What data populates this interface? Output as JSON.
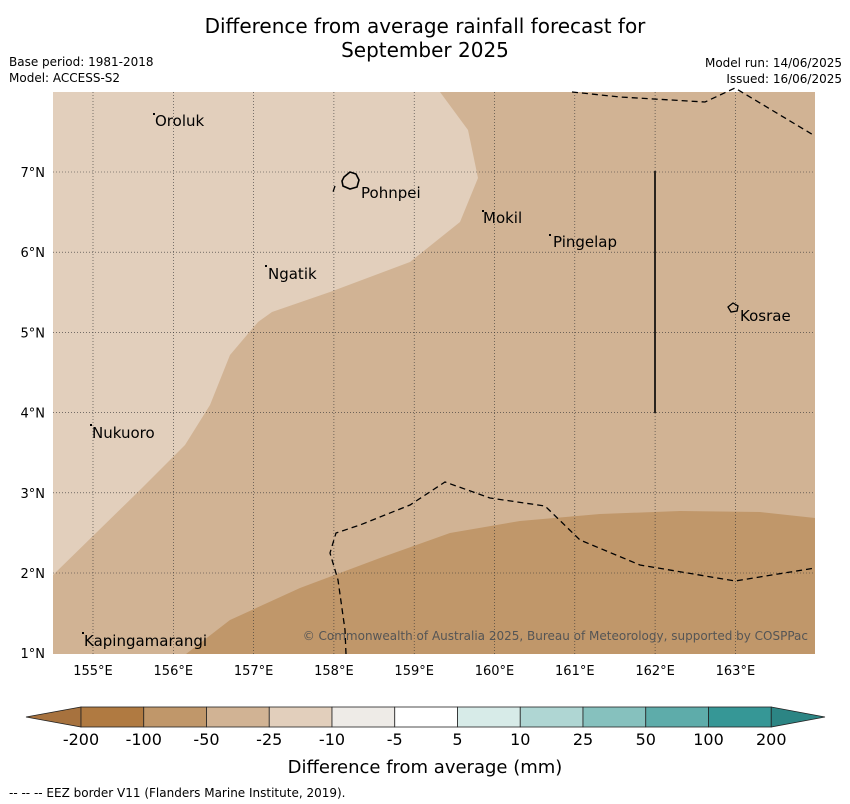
{
  "title": {
    "line1": "Difference from average rainfall forecast for",
    "line2": "September 2025"
  },
  "meta": {
    "base_period": "Base period: 1981-2018",
    "model": "Model: ACCESS-S2",
    "model_run": "Model run: 14/06/2025",
    "issued": "Issued: 16/06/2025"
  },
  "map": {
    "lon_ticks": [
      "155°E",
      "156°E",
      "157°E",
      "158°E",
      "159°E",
      "160°E",
      "161°E",
      "162°E",
      "163°E"
    ],
    "lat_ticks": [
      "7°N",
      "6°N",
      "5°N",
      "4°N",
      "3°N",
      "2°N",
      "1°N"
    ],
    "places": [
      {
        "name": "Oroluk"
      },
      {
        "name": "Pohnpei"
      },
      {
        "name": "Mokil"
      },
      {
        "name": "Pingelap"
      },
      {
        "name": "Ngatik"
      },
      {
        "name": "Kosrae"
      },
      {
        "name": "Nukuoro"
      },
      {
        "name": "Kapingamarangi"
      }
    ],
    "copyright": "© Commonwealth of Australia 2025, Bureau of Meteorology, supported by COSPPac"
  },
  "colorbar": {
    "ticks": [
      "-200",
      "-100",
      "-50",
      "-25",
      "-10",
      "-5",
      "5",
      "10",
      "25",
      "50",
      "100",
      "200"
    ],
    "colors": [
      "#a7723e",
      "#b07a41",
      "#c0976a",
      "#d1b394",
      "#e2cfbc",
      "#eeebe7",
      "#ffffff",
      "#d7ebe8",
      "#afd6d3",
      "#86c1be",
      "#5eacaa",
      "#369796",
      "#2c8584"
    ],
    "label": "Difference from average (mm)"
  },
  "footer": {
    "eez_note": "--  --  -- EEZ border V11 (Flanders Marine Institute, 2019)."
  }
}
